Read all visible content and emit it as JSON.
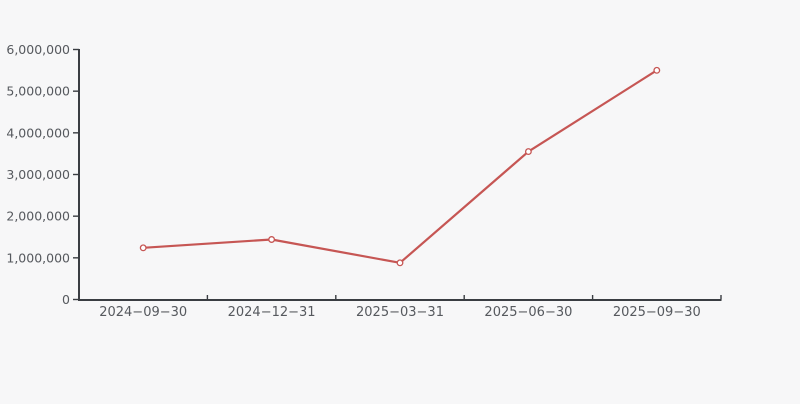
{
  "chart_data": {
    "type": "line",
    "title": "",
    "xlabel": "",
    "ylabel": "",
    "categories": [
      "2024−09−30",
      "2024−12−31",
      "2025−03−31",
      "2025−06−30",
      "2025−09−30"
    ],
    "values": [
      1240000,
      1440000,
      880000,
      3550000,
      5500000
    ],
    "ylim": [
      0,
      6000000
    ],
    "ytick_interval": 1000000,
    "ytick_labels": [
      "0",
      "1,000,000",
      "2,000,000",
      "3,000,000",
      "4,000,000",
      "5,000,000",
      "6,000,000"
    ],
    "grid": false,
    "legend": "none",
    "marker": "open-circle",
    "colors": {
      "background": "#f7f7f8",
      "axis": "#3a3d42",
      "tick_label": "#56595e",
      "series_line": "#c65654",
      "marker_fill": "#ffffff"
    }
  }
}
